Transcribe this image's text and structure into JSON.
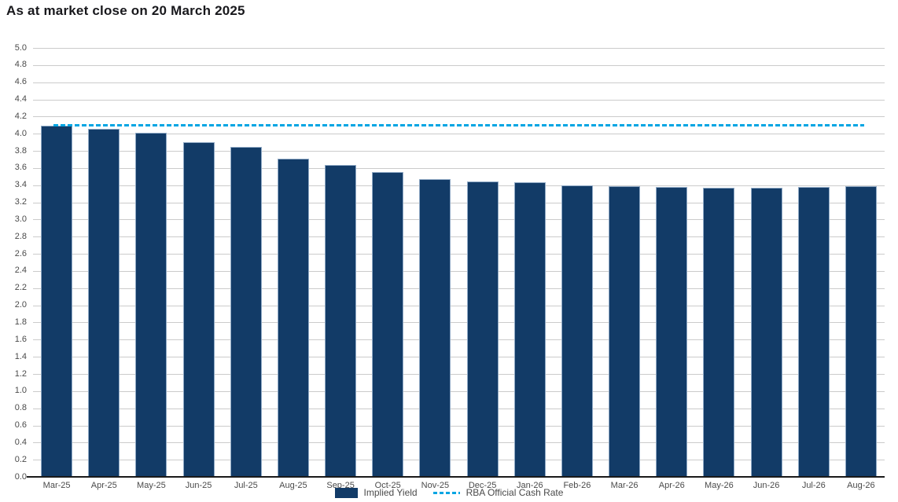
{
  "title": "As at market close on 20 March 2025",
  "legend": {
    "items": [
      {
        "label": "Implied Yield",
        "swatch": "bar-square"
      },
      {
        "label": "RBA Official Cash Rate",
        "swatch": "dashed-line"
      }
    ],
    "position": "bottom-center"
  },
  "colors": {
    "bar_fill": "#123B67",
    "bar_border": "#8FA9C5",
    "cash_rate_line": "#00A5E3",
    "gridline": "#CBCBCB",
    "axis_line": "#1A1A1A",
    "axis_label_text": "#4A4A4A",
    "title_text": "#18181C",
    "background": "#FFFFFF"
  },
  "chart_data": {
    "type": "bar",
    "title": "As at market close on 20 March 2025",
    "categories": [
      "Mar-25",
      "Apr-25",
      "May-25",
      "Jun-25",
      "Jul-25",
      "Aug-25",
      "Sep-25",
      "Oct-25",
      "Nov-25",
      "Dec-25",
      "Jan-26",
      "Feb-26",
      "Mar-26",
      "Apr-26",
      "May-26",
      "Jun-26",
      "Jul-26",
      "Aug-26"
    ],
    "series": [
      {
        "name": "Implied Yield",
        "type": "bar",
        "values": [
          4.09,
          4.06,
          4.01,
          3.9,
          3.85,
          3.71,
          3.64,
          3.55,
          3.47,
          3.44,
          3.43,
          3.4,
          3.39,
          3.38,
          3.37,
          3.37,
          3.38,
          3.39
        ]
      },
      {
        "name": "RBA Official Cash Rate",
        "type": "line",
        "style": "dashed",
        "constant_value": 4.1
      }
    ],
    "xlabel": "",
    "ylabel": "",
    "ylim": [
      0,
      5
    ],
    "ytick_step": 0.2,
    "ytick_labels": [
      "5.0",
      "4.8",
      "4.6",
      "4.4",
      "4.2",
      "4.0",
      "3.8",
      "3.6",
      "3.4",
      "3.2",
      "3.0",
      "2.8",
      "2.6",
      "2.4",
      "2.2",
      "2.0",
      "1.8",
      "1.6",
      "1.4",
      "1.2",
      "1.0",
      "0.8",
      "0.6",
      "0.4",
      "0.2",
      "0.0"
    ],
    "grid": true,
    "legend_position": "bottom"
  }
}
